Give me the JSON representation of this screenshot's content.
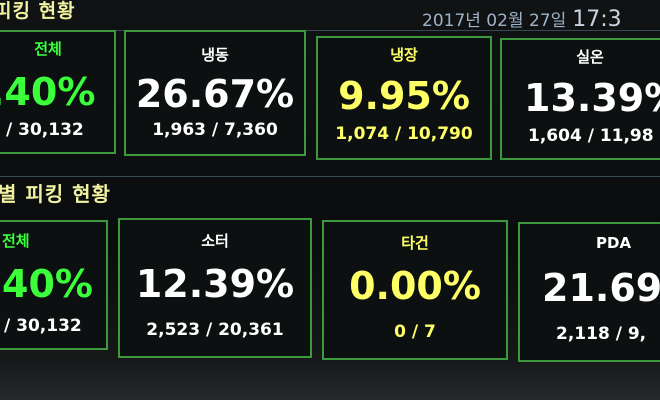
{
  "colors": {
    "border": "#3c9a3c",
    "white_text": "#ffffff",
    "green_text": "#3cff3c",
    "yellow_text": "#ffff66",
    "title_text": "#f2f2a0",
    "date_text": "#9fb3c8"
  },
  "header": {
    "title": "피킹 현황",
    "date": "2017년 02월 27일",
    "time": "17:3"
  },
  "section1": {
    "cards": [
      {
        "label": "전체",
        "percent": ".40%",
        "count": "/ 30,132",
        "color": "green"
      },
      {
        "label": "냉동",
        "percent": "26.67%",
        "count": "1,963 / 7,360",
        "color": "white"
      },
      {
        "label": "냉장",
        "percent": "9.95%",
        "count": "1,074 / 10,790",
        "color": "yellow"
      },
      {
        "label": "실온",
        "percent": "13.39%",
        "count": "1,604 / 11,98",
        "color": "white"
      }
    ]
  },
  "section2": {
    "title": "별 피킹 현황",
    "cards": [
      {
        "label": "전체",
        "percent": "40%",
        "count": "/ 30,132",
        "color": "green"
      },
      {
        "label": "소터",
        "percent": "12.39%",
        "count": "2,523 / 20,361",
        "color": "white"
      },
      {
        "label": "타건",
        "percent": "0.00%",
        "count": "0 / 7",
        "color": "yellow"
      },
      {
        "label": "PDA",
        "percent": "21.69",
        "count": "2,118 / 9,",
        "color": "white"
      }
    ]
  }
}
